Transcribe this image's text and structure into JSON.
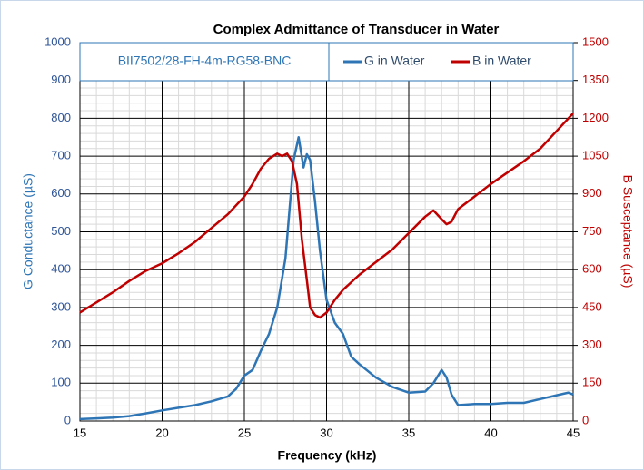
{
  "chart_data": {
    "type": "line",
    "title": "Complex Admittance of Transducer in Water",
    "annotation": "BII7502/28-FH-4m-RG58-BNC",
    "xlabel": "Frequency (kHz)",
    "ylabel": "G Conductance (µS)",
    "y2label": "B Susceptance (µS)",
    "xlim": [
      15,
      45
    ],
    "xticks": [
      15,
      20,
      25,
      30,
      35,
      40,
      45
    ],
    "ylim": [
      0,
      1000
    ],
    "yticks": [
      0,
      100,
      200,
      300,
      400,
      500,
      600,
      700,
      800,
      900,
      1000
    ],
    "y2lim": [
      0,
      1500
    ],
    "y2ticks": [
      0,
      150,
      300,
      450,
      600,
      750,
      900,
      1050,
      1200,
      1350,
      1500
    ],
    "grid": true,
    "legend": "top",
    "series": [
      {
        "name": "G in Water",
        "color": "#2e75b6",
        "axis": "y",
        "x": [
          15,
          16,
          17,
          18,
          19,
          20,
          21,
          22,
          23,
          24,
          24.5,
          25,
          25.5,
          26,
          26.5,
          27,
          27.5,
          28,
          28.3,
          28.6,
          28.8,
          29,
          29.3,
          29.6,
          30,
          30.5,
          31,
          31.5,
          32,
          33,
          34,
          35,
          36,
          36.5,
          37,
          37.3,
          37.6,
          38,
          39,
          40,
          41,
          42,
          43,
          44,
          44.7,
          45
        ],
        "values": [
          5,
          7,
          9,
          13,
          20,
          28,
          35,
          42,
          52,
          65,
          85,
          120,
          135,
          185,
          230,
          300,
          430,
          690,
          750,
          670,
          705,
          690,
          580,
          450,
          320,
          260,
          230,
          170,
          150,
          115,
          90,
          75,
          78,
          100,
          135,
          115,
          70,
          42,
          45,
          45,
          48,
          48,
          58,
          68,
          75,
          70
        ]
      },
      {
        "name": "B in Water",
        "color": "#c00000",
        "axis": "y2",
        "x": [
          15,
          16,
          17,
          18,
          19,
          20,
          21,
          22,
          23,
          24,
          25,
          25.5,
          26,
          26.5,
          27,
          27.3,
          27.6,
          27.9,
          28.2,
          28.5,
          28.8,
          29,
          29.3,
          29.6,
          30,
          30.5,
          31,
          32,
          33,
          34,
          35,
          36,
          36.5,
          37,
          37.3,
          37.6,
          38,
          39,
          40,
          41,
          42,
          43,
          44,
          45
        ],
        "values": [
          430,
          470,
          510,
          555,
          595,
          625,
          665,
          710,
          765,
          820,
          890,
          940,
          1000,
          1040,
          1060,
          1050,
          1060,
          1030,
          940,
          720,
          560,
          450,
          420,
          410,
          430,
          480,
          520,
          580,
          630,
          680,
          745,
          810,
          835,
          800,
          780,
          790,
          840,
          890,
          940,
          985,
          1030,
          1080,
          1150,
          1220
        ]
      }
    ]
  }
}
